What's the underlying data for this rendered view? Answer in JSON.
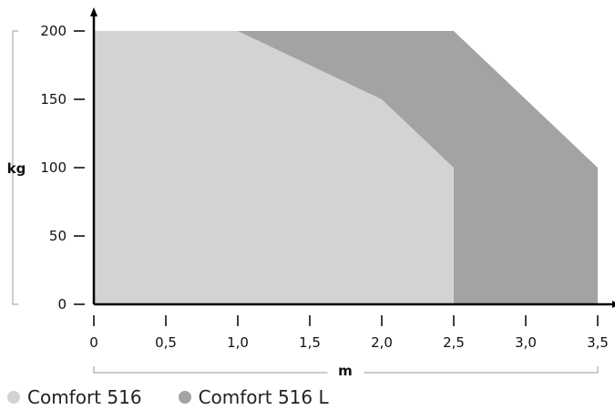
{
  "chart_data": {
    "type": "area",
    "xlabel": "m",
    "ylabel": "kg",
    "xlim": [
      0,
      3.5
    ],
    "ylim": [
      0,
      200
    ],
    "x_ticks": [
      0,
      0.5,
      1.0,
      1.5,
      2.0,
      2.5,
      3.0,
      3.5
    ],
    "x_tick_labels": [
      "0",
      "0,5",
      "1,0",
      "1,5",
      "2,0",
      "2,5",
      "3,0",
      "3,5"
    ],
    "y_ticks": [
      0,
      50,
      100,
      150,
      200
    ],
    "y_tick_labels": [
      "0",
      "50",
      "100",
      "150",
      "200"
    ],
    "grid": false,
    "legend_position": "bottom-left",
    "series": [
      {
        "name": "Comfort 516 L",
        "color": "#a3a3a3",
        "points": [
          [
            0,
            200
          ],
          [
            2.5,
            200
          ],
          [
            3.5,
            100
          ],
          [
            3.5,
            0
          ]
        ]
      },
      {
        "name": "Comfort 516",
        "color": "#d3d3d3",
        "points": [
          [
            0,
            200
          ],
          [
            1.0,
            200
          ],
          [
            2.0,
            150
          ],
          [
            2.5,
            100
          ],
          [
            2.5,
            0
          ]
        ]
      }
    ]
  },
  "legend": [
    {
      "label": "Comfort 516",
      "color": "#d3d3d3"
    },
    {
      "label": "Comfort 516 L",
      "color": "#a3a3a3"
    }
  ]
}
